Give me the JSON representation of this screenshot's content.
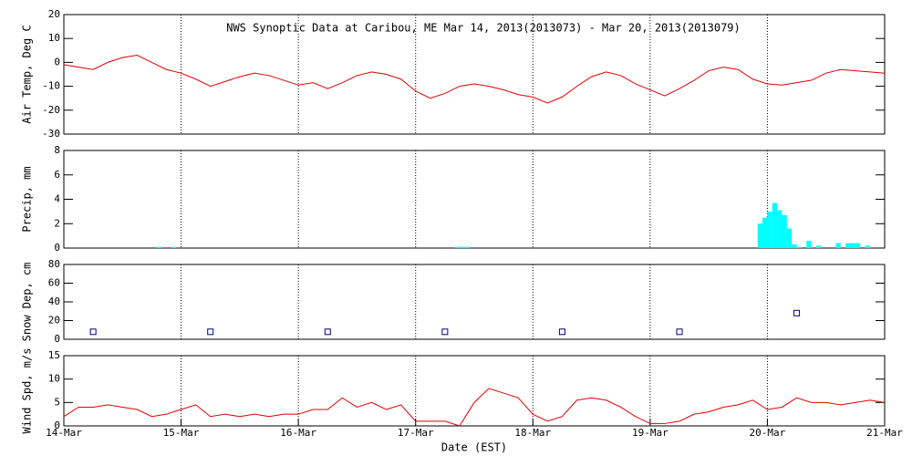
{
  "chart_data": [
    {
      "type": "line",
      "title": "NWS Synoptic Data at Caribou, ME   Mar 14, 2013(2013073) - Mar 20, 2013(2013079)",
      "ylabel": "Air Temp, Deg C",
      "xlim": [
        0,
        168
      ],
      "ylim": [
        -30,
        20
      ],
      "yticks": [
        -30,
        -20,
        -10,
        0,
        10,
        20
      ],
      "grid": true,
      "x": [
        0,
        3,
        6,
        9,
        12,
        15,
        18,
        21,
        24,
        27,
        30,
        33,
        36,
        39,
        42,
        45,
        48,
        51,
        54,
        57,
        60,
        63,
        66,
        69,
        72,
        75,
        78,
        81,
        84,
        87,
        90,
        93,
        96,
        99,
        102,
        105,
        108,
        111,
        114,
        117,
        120,
        123,
        126,
        129,
        132,
        135,
        138,
        141,
        144,
        147,
        150,
        153,
        156,
        159,
        162,
        165,
        168
      ],
      "series": [
        {
          "color": "#e00000",
          "values": [
            -1,
            -2,
            -3,
            0,
            2,
            3,
            0,
            -3,
            -4.5,
            -7,
            -10,
            -8,
            -6,
            -4.5,
            -5.5,
            -7.5,
            -9.5,
            -8.5,
            -11,
            -8.5,
            -5.5,
            -4,
            -5,
            -7,
            -12,
            -15,
            -13,
            -10,
            -9,
            -10,
            -11.5,
            -13.5,
            -14.5,
            -17,
            -14.5,
            -10,
            -6,
            -4,
            -5.5,
            -9,
            -11.5,
            -14,
            -11,
            -7.5,
            -3.5,
            -2,
            -3,
            -7,
            -9,
            -9.5,
            -8.5,
            -7.5,
            -4.5,
            -3,
            -3.5,
            -4,
            -4.5
          ]
        }
      ]
    },
    {
      "type": "bar",
      "ylabel": "Precip, mm",
      "xlim": [
        0,
        168
      ],
      "ylim": [
        0,
        8
      ],
      "yticks": [
        0,
        2,
        4,
        6,
        8
      ],
      "grid": true,
      "x": [
        19,
        22,
        80,
        81,
        82,
        142,
        143,
        144,
        145,
        146,
        147,
        148,
        149,
        150,
        152,
        154,
        158,
        160,
        161,
        162,
        164
      ],
      "series": [
        {
          "color": "#00ffff",
          "values": [
            0.1,
            0.1,
            0.1,
            0.1,
            0.1,
            2.0,
            2.5,
            3.0,
            3.7,
            3.1,
            2.7,
            1.6,
            0.3,
            0.1,
            0.6,
            0.2,
            0.4,
            0.4,
            0.4,
            0.4,
            0.2
          ]
        }
      ]
    },
    {
      "type": "scatter",
      "ylabel": "Snow Dep, cm",
      "xlim": [
        0,
        168
      ],
      "ylim": [
        0,
        80
      ],
      "yticks": [
        0,
        20,
        40,
        60,
        80
      ],
      "grid": true,
      "x": [
        6,
        30,
        54,
        78,
        102,
        126,
        150
      ],
      "series": [
        {
          "color": "#000080",
          "values": [
            8,
            8,
            8,
            8,
            8,
            8,
            28
          ]
        }
      ]
    },
    {
      "type": "line",
      "ylabel": "Wind Spd, m/s",
      "xlabel": "Date (EST)",
      "xlim": [
        0,
        168
      ],
      "ylim": [
        0,
        15
      ],
      "yticks": [
        0,
        5,
        10,
        15
      ],
      "grid": true,
      "xticks": [
        {
          "value": 0,
          "label": "14-Mar"
        },
        {
          "value": 24,
          "label": "15-Mar"
        },
        {
          "value": 48,
          "label": "16-Mar"
        },
        {
          "value": 72,
          "label": "17-Mar"
        },
        {
          "value": 96,
          "label": "18-Mar"
        },
        {
          "value": 120,
          "label": "19-Mar"
        },
        {
          "value": 144,
          "label": "20-Mar"
        },
        {
          "value": 168,
          "label": "21-Mar"
        }
      ],
      "x": [
        0,
        3,
        6,
        9,
        12,
        15,
        18,
        21,
        24,
        27,
        30,
        33,
        36,
        39,
        42,
        45,
        48,
        51,
        54,
        57,
        60,
        63,
        66,
        69,
        72,
        75,
        78,
        81,
        84,
        87,
        90,
        93,
        96,
        99,
        102,
        105,
        108,
        111,
        114,
        117,
        120,
        123,
        126,
        129,
        132,
        135,
        138,
        141,
        144,
        147,
        150,
        153,
        156,
        159,
        162,
        165,
        168
      ],
      "series": [
        {
          "color": "#e00000",
          "values": [
            2,
            4,
            4,
            4.5,
            4,
            3.5,
            2,
            2.5,
            3.5,
            4.5,
            2,
            2.5,
            2,
            2.5,
            2,
            2.5,
            2.5,
            3.5,
            3.5,
            6,
            4,
            5,
            3.5,
            4.5,
            1,
            1,
            1,
            0,
            5,
            8,
            7,
            6,
            2.5,
            1,
            2,
            5.5,
            6,
            5.5,
            4,
            2,
            0.5,
            0.5,
            1,
            2.5,
            3,
            4,
            4.5,
            5.5,
            3.5,
            4,
            6,
            5,
            5,
            4.5,
            5,
            5.5,
            5
          ]
        }
      ]
    }
  ]
}
